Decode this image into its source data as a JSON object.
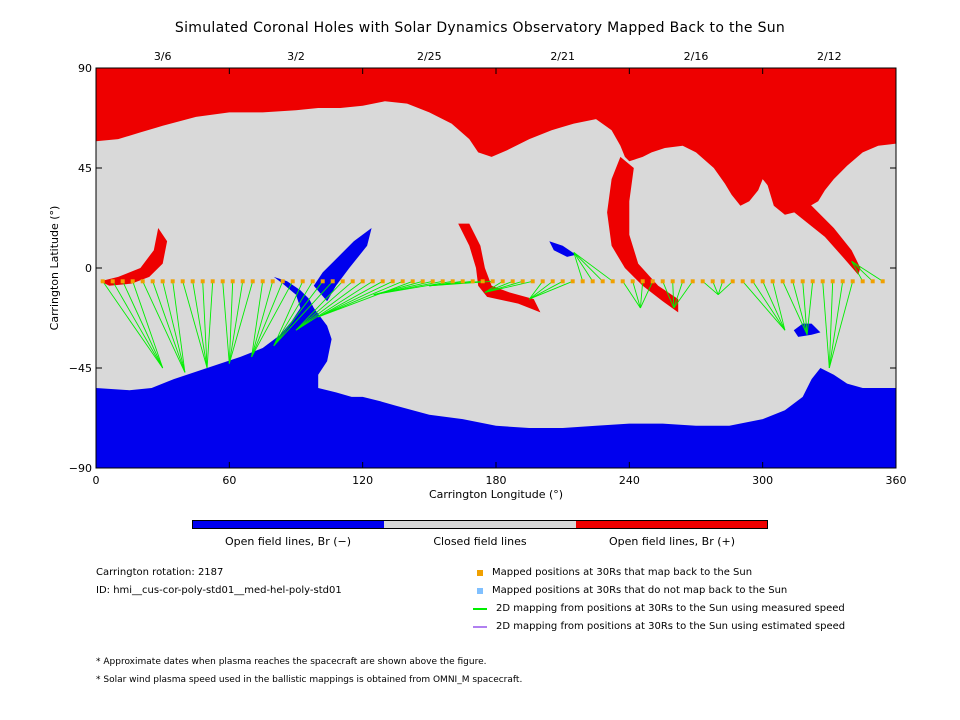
{
  "title": "Simulated Coronal Holes with Solar Dynamics Observatory Mapped Back to the Sun",
  "chart_data": {
    "type": "map",
    "xlabel": "Carrington Longitude (°)",
    "ylabel": "Carrington Latitude (°)",
    "xlim": [
      0,
      360
    ],
    "ylim": [
      -90,
      90
    ],
    "x_ticks": [
      0,
      60,
      120,
      180,
      240,
      300,
      360
    ],
    "y_ticks": [
      90,
      45,
      0,
      -45,
      -90
    ],
    "x_tick_labels": [
      "0",
      "60",
      "120",
      "180",
      "240",
      "300",
      "360"
    ],
    "y_tick_labels": [
      "90",
      "45",
      "0",
      "−45",
      "−90"
    ],
    "top_dates": [
      {
        "label": "3/6",
        "lon": 30
      },
      {
        "label": "3/2",
        "lon": 90
      },
      {
        "label": "2/25",
        "lon": 150
      },
      {
        "label": "2/21",
        "lon": 210
      },
      {
        "label": "2/16",
        "lon": 270
      },
      {
        "label": "2/12",
        "lon": 330
      }
    ],
    "colors": {
      "open_negative": "#0000ee",
      "closed": "#d9d9d9",
      "open_positive": "#ee0000",
      "mapped": "#f0a000",
      "unmapped": "#80c0ff",
      "measured": "#00ee00",
      "estimated": "#b080f0"
    },
    "regions": {
      "background": "closed",
      "north_polar": "open_positive",
      "south_polar": "open_negative",
      "small_positive_holes": [
        [
          5,
          -5
        ],
        [
          28,
          -5
        ],
        [
          175,
          -12
        ],
        [
          240,
          -12
        ],
        [
          325,
          -5
        ]
      ],
      "small_negative_holes": [
        [
          95,
          -10
        ],
        [
          210,
          10
        ],
        [
          320,
          -28
        ]
      ]
    },
    "mapped_points": {
      "lat_start": -6,
      "lon_start": 3,
      "lon_end": 357,
      "spacing": 4.5,
      "footpoints": [
        [
          30,
          -45
        ],
        [
          40,
          -47
        ],
        [
          50,
          -45
        ],
        [
          60,
          -43
        ],
        [
          70,
          -40
        ],
        [
          80,
          -35
        ],
        [
          90,
          -28
        ],
        [
          100,
          -22
        ],
        [
          125,
          -12
        ],
        [
          150,
          -8
        ],
        [
          175,
          -11
        ],
        [
          195,
          -14
        ],
        [
          215,
          7
        ],
        [
          245,
          -18
        ],
        [
          260,
          -18
        ],
        [
          280,
          -12
        ],
        [
          310,
          -28
        ],
        [
          320,
          -30
        ],
        [
          330,
          -45
        ],
        [
          340,
          3
        ]
      ]
    }
  },
  "colorbar": {
    "labels": [
      "Open field lines, Br (−)",
      "Closed field lines",
      "Open field lines, Br (+)"
    ]
  },
  "info": {
    "rotation": "Carrington rotation: 2187",
    "id": "ID: hmi__cus-cor-poly-std01__med-hel-poly-std01"
  },
  "legend": [
    {
      "label": "Mapped positions at 30Rs that map back to the Sun",
      "marker": "square",
      "color": "#f0a000"
    },
    {
      "label": "Mapped positions at 30Rs that do not map back to the Sun",
      "marker": "square",
      "color": "#80c0ff"
    },
    {
      "label": "2D mapping from positions at 30Rs to the Sun using measured speed",
      "marker": "line",
      "color": "#00ee00"
    },
    {
      "label": "2D mapping from positions at 30Rs to the Sun using estimated speed",
      "marker": "line",
      "color": "#b080f0"
    }
  ],
  "notes": [
    "* Approximate dates when plasma reaches the spacecraft are shown above the figure.",
    "* Solar wind plasma speed used in the ballistic mappings is obtained from OMNI_M spacecraft."
  ]
}
